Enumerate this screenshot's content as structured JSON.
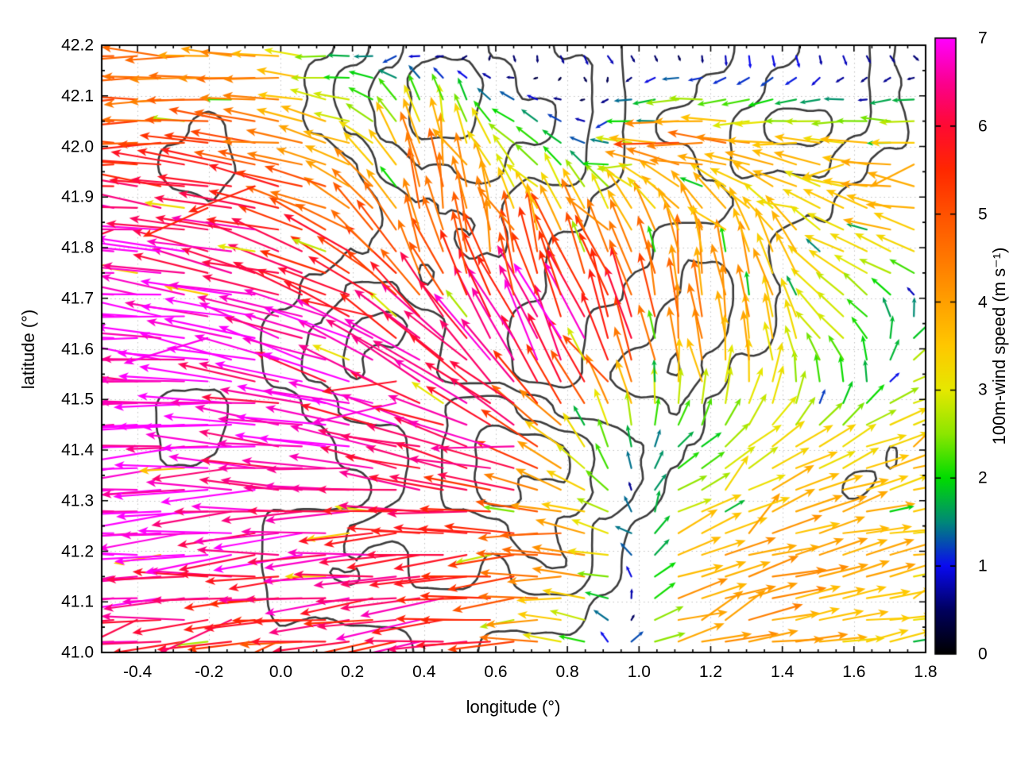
{
  "chart_data": {
    "type": "quiver",
    "title": "",
    "xlabel": "longitude (°)",
    "ylabel": "latitude (°)",
    "xlim": [
      -0.5,
      1.8
    ],
    "ylim": [
      41.0,
      42.2
    ],
    "xtick_values": [
      -0.4,
      -0.2,
      0.0,
      0.2,
      0.4,
      0.6,
      0.8,
      1.0,
      1.2,
      1.4,
      1.6,
      1.8
    ],
    "xtick_labels": [
      "-0.4",
      "-0.2",
      "0.0",
      "0.2",
      "0.4",
      "0.6",
      "0.8",
      "1.0",
      "1.2",
      "1.4",
      "1.6",
      "1.8"
    ],
    "ytick_values": [
      41.0,
      41.1,
      41.2,
      41.3,
      41.4,
      41.5,
      41.6,
      41.7,
      41.8,
      41.9,
      42.0,
      42.1,
      42.2
    ],
    "ytick_labels": [
      "41.0",
      "41.1",
      "41.2",
      "41.3",
      "41.4",
      "41.5",
      "41.6",
      "41.7",
      "41.8",
      "41.9",
      "42.0",
      "42.1",
      "42.2"
    ],
    "minor_step_x": 0.05,
    "minor_step_y": 0.05,
    "grid": true,
    "grid_color": "#c3c3c3",
    "colorbar": {
      "label": "100m-wind speed (m s⁻¹)",
      "min": 0,
      "max": 7,
      "tick_values": [
        0,
        1,
        2,
        3,
        4,
        5,
        6,
        7
      ],
      "tick_labels": [
        "0",
        "1",
        "2",
        "3",
        "4",
        "5",
        "6",
        "7"
      ],
      "palette": [
        [
          0.0,
          "#000000"
        ],
        [
          0.5,
          "#00005e"
        ],
        [
          1.0,
          "#0a0af0"
        ],
        [
          1.5,
          "#008878"
        ],
        [
          2.0,
          "#00dc00"
        ],
        [
          2.5,
          "#8ce600"
        ],
        [
          3.0,
          "#e6e800"
        ],
        [
          3.5,
          "#ffc800"
        ],
        [
          4.0,
          "#ffa000"
        ],
        [
          4.5,
          "#ff7800"
        ],
        [
          5.0,
          "#ff5200"
        ],
        [
          5.5,
          "#ff2800"
        ],
        [
          6.0,
          "#ff0a32"
        ],
        [
          6.5,
          "#fb0090"
        ],
        [
          7.0,
          "#ff00ff"
        ]
      ]
    },
    "wind_grid": {
      "units": "m s⁻¹",
      "lons": [
        -0.5,
        -0.27,
        -0.04,
        0.19,
        0.42,
        0.65,
        0.88,
        1.11,
        1.34,
        1.57,
        1.8
      ],
      "lats": [
        41.0,
        41.2,
        41.4,
        41.6,
        41.8,
        42.0,
        42.2
      ],
      "u": [
        [
          -6.7,
          -5.5,
          -5.0,
          -5.5,
          -6.4,
          -5.4,
          -1.0,
          3.8,
          4.0,
          3.6,
          3.2
        ],
        [
          -7.0,
          -7.0,
          -6.8,
          -6.7,
          -6.0,
          -5.0,
          -4.5,
          3.6,
          3.9,
          3.7,
          3.4
        ],
        [
          -7.0,
          -7.0,
          -6.9,
          -6.5,
          -6.3,
          -6.0,
          -1.0,
          1.2,
          2.5,
          3.2,
          3.6
        ],
        [
          -7.0,
          -7.0,
          -6.5,
          -6.2,
          -5.0,
          -3.2,
          -2.5,
          -0.5,
          -0.5,
          -2.0,
          2.5
        ],
        [
          -6.6,
          -6.7,
          -6.3,
          -4.5,
          -1.0,
          -0.8,
          -2.0,
          -0.5,
          -1.5,
          -3.0,
          -3.5
        ],
        [
          -5.5,
          -5.2,
          -4.8,
          -3.5,
          -0.5,
          -2.2,
          -1.0,
          -5.5,
          -4.0,
          -3.5,
          -4.0
        ],
        [
          -4.5,
          -4.4,
          -4.0,
          -1.5,
          -0.8,
          0.2,
          0.6,
          0.8,
          0.5,
          0.8,
          1.0
        ]
      ],
      "v": [
        [
          -0.5,
          -0.4,
          -0.5,
          -0.6,
          -0.8,
          -0.5,
          0.8,
          0.9,
          0.7,
          0.5,
          0.4
        ],
        [
          -0.6,
          -0.5,
          -0.4,
          -0.5,
          -0.6,
          -0.4,
          0.3,
          1.6,
          1.2,
          0.8,
          0.5
        ],
        [
          -0.3,
          -0.2,
          0.2,
          0.8,
          1.5,
          2.0,
          2.2,
          1.0,
          2.0,
          1.5,
          1.0
        ],
        [
          0.5,
          0.8,
          1.8,
          2.6,
          4.0,
          6.0,
          6.2,
          4.5,
          3.8,
          2.0,
          1.5
        ],
        [
          1.2,
          0.8,
          1.3,
          3.0,
          4.8,
          4.4,
          4.5,
          4.2,
          3.7,
          1.5,
          1.0
        ],
        [
          0.0,
          0.2,
          0.3,
          1.2,
          4.5,
          1.8,
          0.2,
          0.3,
          0.2,
          0.4,
          0.2
        ],
        [
          0.3,
          0.2,
          0.3,
          -0.3,
          -0.5,
          -0.8,
          -0.8,
          -0.5,
          -1.2,
          -0.8,
          -0.4
        ]
      ]
    },
    "quiver": {
      "cols": 35,
      "rows": 28
    },
    "terrain": {
      "contour_color": "#3c3c3c",
      "levels": [
        4.5,
        5.5,
        6.5,
        7.5
      ],
      "rows_north_to_south": [
        "222233456776655444556654",
        "222334567887665445566654",
        "344544567887765455677654",
        "345544456777665445666544",
        "234433445666554444555443",
        "223333455566544455544433",
        "222334566555544556544333",
        "333345677655445566543333",
        "344445676655445665443333",
        "345544566677655554433333",
        "345544455678876544333443",
        "344444445678776543334543",
        "233345566666765433333433",
        "223345665665665432222332",
        "222345555555554322222222",
        "222234444554443322222222"
      ]
    }
  }
}
